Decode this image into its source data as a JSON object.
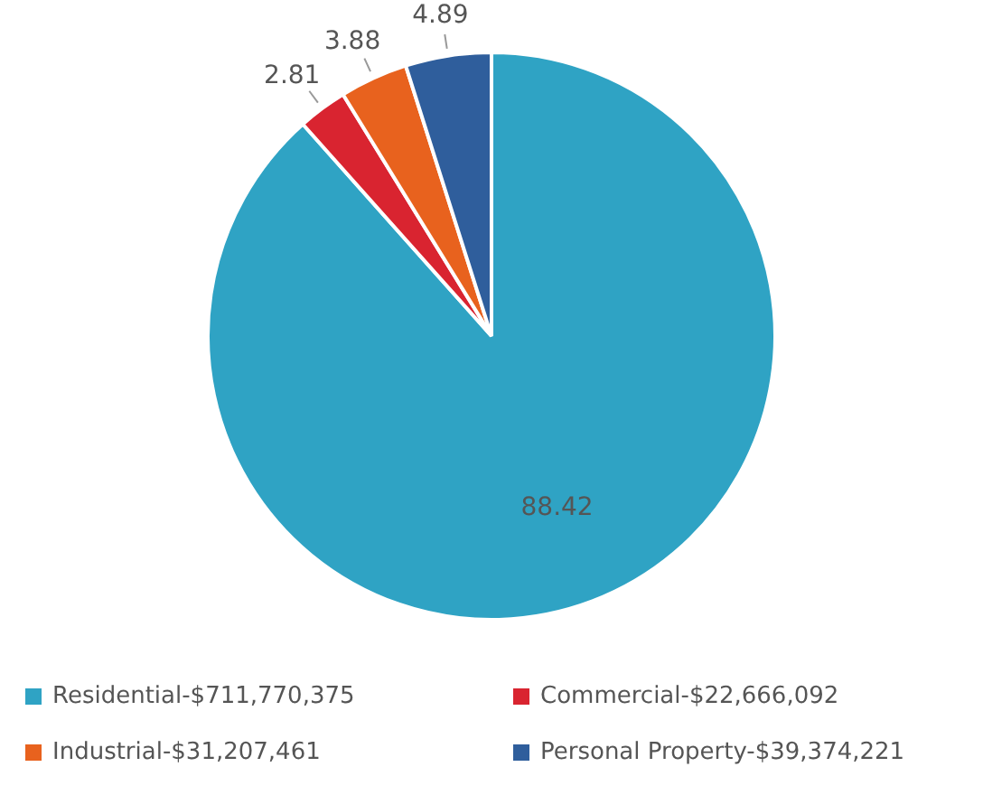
{
  "chart_data": {
    "type": "pie",
    "categories": [
      "Residential-$711,770,375",
      "Commercial-$22,666,092",
      "Industrial-$31,207,461",
      "Personal Property-$39,374,221"
    ],
    "values": [
      88.42,
      2.81,
      3.88,
      4.89
    ],
    "colors": [
      "#2fa3c4",
      "#d92430",
      "#e8621e",
      "#2f5e9c"
    ],
    "data_labels": true,
    "legend": "bottom"
  }
}
